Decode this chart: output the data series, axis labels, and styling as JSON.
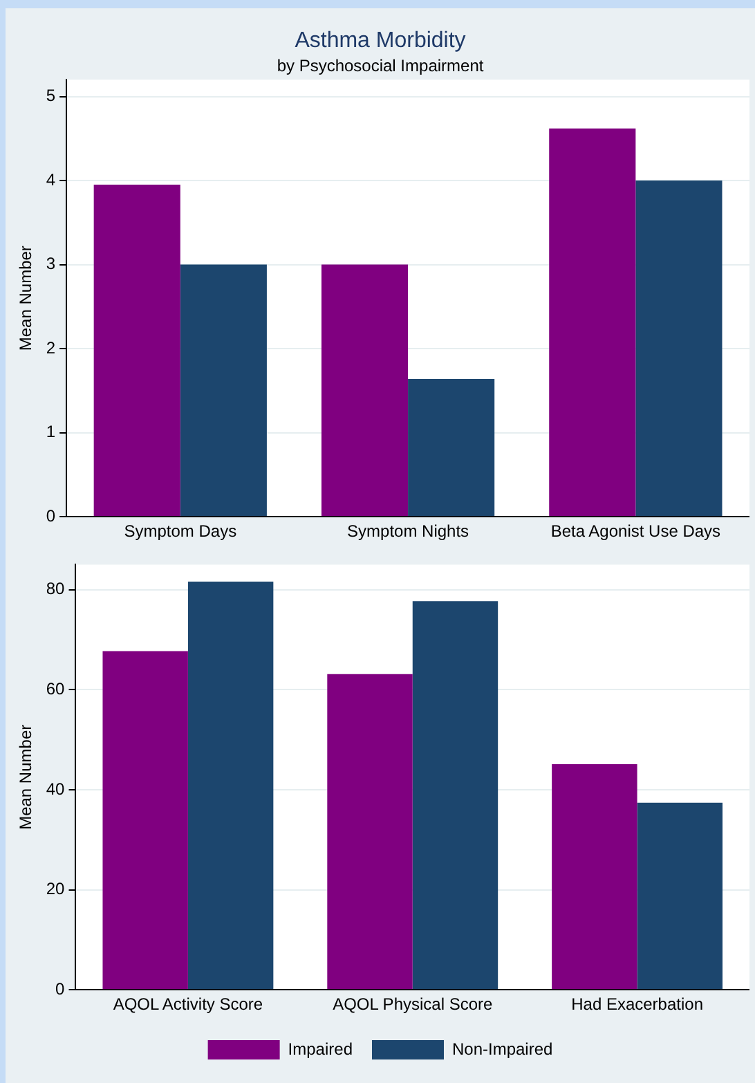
{
  "chart_data": [
    {
      "type": "bar",
      "title": "Asthma Morbidity",
      "subtitle": "by Psychosocial Impairment",
      "ylabel": "Mean Number",
      "categories": [
        "Symptom Days",
        "Symptom Nights",
        "Beta Agonist Use Days"
      ],
      "series": [
        {
          "color": "#800080",
          "values": [
            3.95,
            3.0,
            4.62
          ]
        },
        {
          "color": "#1c466e",
          "values": [
            3.0,
            1.64,
            4.0
          ]
        }
      ],
      "ylim": [
        0,
        5.2
      ],
      "yticks": [
        0,
        1,
        2,
        3,
        4,
        5
      ],
      "grid": "y",
      "legend": false
    },
    {
      "type": "bar",
      "ylabel": "Mean Number",
      "categories": [
        "AQOL Activity Score",
        "AQOL Physical Score",
        "Had Exacerbation"
      ],
      "series": [
        {
          "name": "Impaired",
          "color": "#800080",
          "values": [
            67.7,
            63.1,
            45.1
          ]
        },
        {
          "name": "Non-Impaired",
          "color": "#1c466e",
          "values": [
            81.6,
            77.7,
            37.4
          ]
        }
      ],
      "ylim": [
        0,
        85
      ],
      "yticks": [
        0,
        20,
        40,
        60,
        80
      ],
      "grid": "y",
      "legend": "bottom"
    }
  ]
}
